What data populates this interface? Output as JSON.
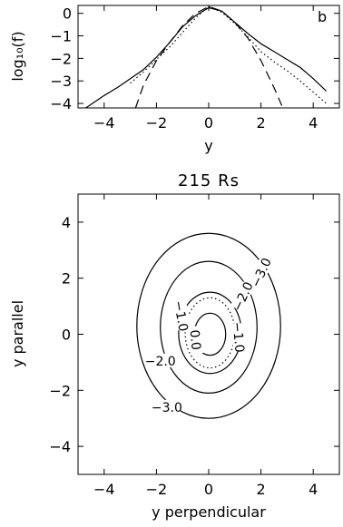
{
  "chart_data": [
    {
      "type": "line",
      "panel_label": "b",
      "xlabel": "y",
      "ylabel": "log₁₀(f)",
      "xlim": [
        -5,
        5
      ],
      "ylim": [
        -4.2,
        0.35
      ],
      "xticks": [
        -4,
        -2,
        0,
        2,
        4
      ],
      "yticks": [
        0,
        -1,
        -2,
        -3,
        -4
      ],
      "series": [
        {
          "style": "solid",
          "x": [
            -4.7,
            -4,
            -3.5,
            -3,
            -2.5,
            -2,
            -1.5,
            -1,
            -0.5,
            0,
            0.5,
            1,
            1.5,
            2,
            2.5,
            3,
            3.5,
            4,
            4.5
          ],
          "y": [
            -4.2,
            -3.65,
            -3.3,
            -2.9,
            -2.5,
            -1.95,
            -1.3,
            -0.6,
            -0.1,
            0.25,
            0.1,
            -0.4,
            -0.9,
            -1.35,
            -1.7,
            -2.05,
            -2.4,
            -2.9,
            -3.45
          ]
        },
        {
          "style": "dotted",
          "x": [
            -3,
            -2.5,
            -2,
            -1.5,
            -1,
            -0.5,
            0,
            0.5,
            1,
            1.5,
            2,
            2.5,
            3,
            3.5,
            4,
            4.5
          ],
          "y": [
            -3.1,
            -2.6,
            -2.05,
            -1.5,
            -0.85,
            -0.2,
            0.3,
            0.05,
            -0.45,
            -1.05,
            -1.7,
            -2.15,
            -2.55,
            -3.0,
            -3.5,
            -4.0
          ]
        },
        {
          "style": "dashed",
          "x": [
            -2.8,
            -2.5,
            -2,
            -1.5,
            -1,
            -0.5,
            0,
            0.5,
            1,
            1.5,
            2,
            2.5,
            2.8
          ],
          "y": [
            -4.2,
            -3.2,
            -2.1,
            -1.3,
            -0.55,
            0.0,
            0.3,
            0.1,
            -0.4,
            -1.1,
            -2.1,
            -3.3,
            -4.1
          ]
        }
      ]
    },
    {
      "type": "contour",
      "title": "215 Rs",
      "xlabel": "y perpendicular",
      "ylabel": "y parallel",
      "xlim": [
        -5,
        5
      ],
      "ylim": [
        -5,
        5
      ],
      "xticks": [
        -4,
        -2,
        0,
        2,
        4
      ],
      "yticks": [
        4,
        2,
        0,
        -2,
        -4
      ],
      "levels": [
        {
          "label": "-3.0",
          "style": "solid",
          "cx": 0.0,
          "cy": 0.3,
          "rx": 2.75,
          "ry": 3.3
        },
        {
          "label": "-2.0",
          "style": "solid",
          "cx": 0.0,
          "cy": 0.25,
          "rx": 1.85,
          "ry": 2.35
        },
        {
          "label": "-1.0",
          "style": "solid",
          "cx": 0.05,
          "cy": 0.05,
          "rx": 1.2,
          "ry": 1.45
        },
        {
          "label": "",
          "style": "dotted",
          "cx": 0.05,
          "cy": 0.05,
          "rx": 0.95,
          "ry": 1.25
        },
        {
          "label": "0.0",
          "style": "solid",
          "cx": 0.05,
          "cy": 0.0,
          "rx": 0.6,
          "ry": 0.75
        }
      ],
      "level_labels": [
        {
          "text": "-3.0",
          "x": 2.0,
          "y": 2.2,
          "angle": -65
        },
        {
          "text": "-2.0",
          "x": 1.3,
          "y": 1.35,
          "angle": -65
        },
        {
          "text": "-1.0",
          "x": -1.05,
          "y": 0.65,
          "angle": 80
        },
        {
          "text": "-1.0",
          "x": 1.15,
          "y": -0.1,
          "angle": 85
        },
        {
          "text": "0.0",
          "x": -0.5,
          "y": -0.2,
          "angle": 85
        },
        {
          "text": "-2.0",
          "x": -1.85,
          "y": -0.95,
          "angle": 0
        },
        {
          "text": "-3.0",
          "x": -1.6,
          "y": -2.6,
          "angle": 0
        }
      ]
    }
  ]
}
